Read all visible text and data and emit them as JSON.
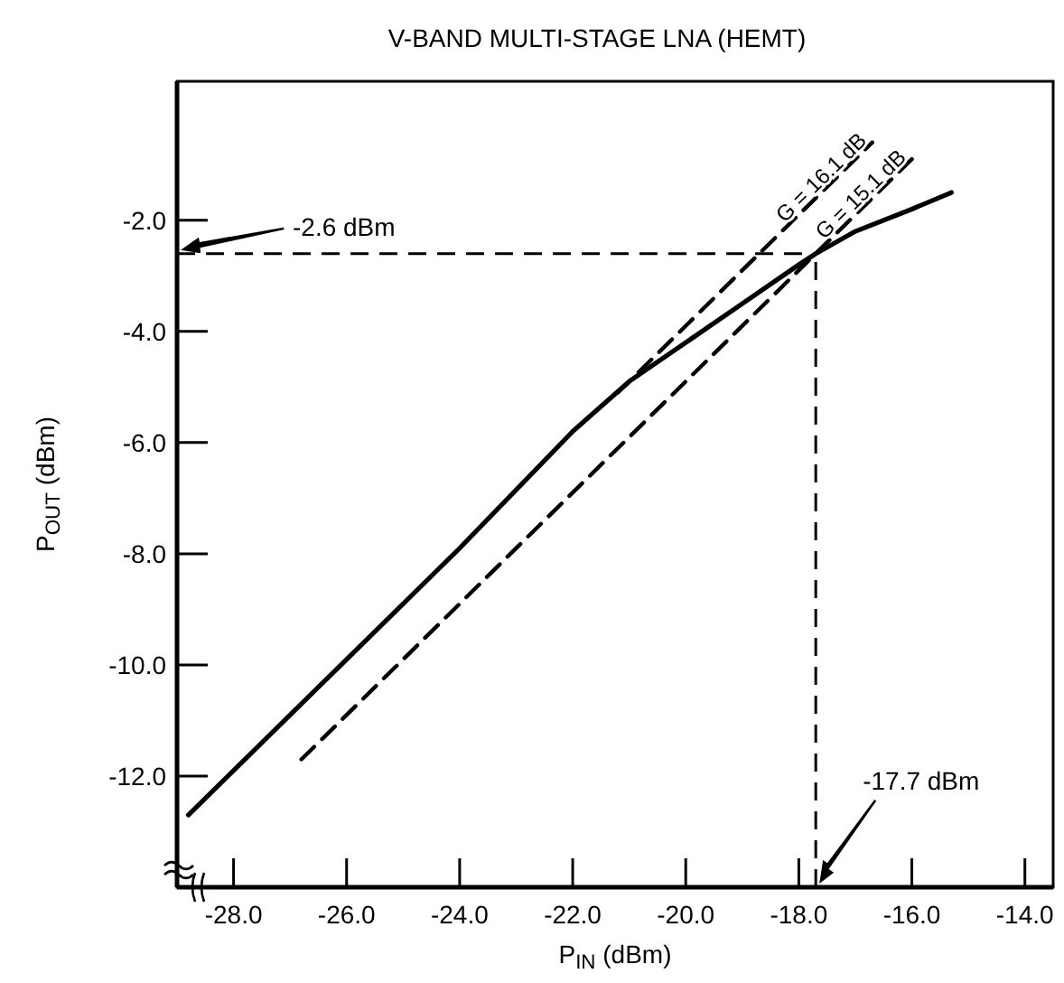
{
  "chart_data": {
    "type": "line",
    "title": "V-BAND MULTI-STAGE LNA (HEMT)",
    "xlabel": "P$_{IN}$ (dBm)",
    "ylabel": "P$_{OUT}$ (dBm)",
    "xlim": [
      -29,
      -13.5
    ],
    "ylim": [
      -14,
      0.5
    ],
    "xticks": [
      {
        "value": -28,
        "label": "-28.0"
      },
      {
        "value": -26,
        "label": "-26.0"
      },
      {
        "value": -24,
        "label": "-24.0"
      },
      {
        "value": -22,
        "label": "-22.0"
      },
      {
        "value": -20,
        "label": "-20.0"
      },
      {
        "value": -18,
        "label": "-18.0"
      },
      {
        "value": -16,
        "label": "-16.0"
      },
      {
        "value": -14,
        "label": "-14.0"
      }
    ],
    "yticks": [
      {
        "value": -2,
        "label": "-2.0"
      },
      {
        "value": -4,
        "label": "-4.0"
      },
      {
        "value": -6,
        "label": "-6.0"
      },
      {
        "value": -8,
        "label": "-8.0"
      },
      {
        "value": -10,
        "label": "-10.0"
      },
      {
        "value": -12,
        "label": "-12.0"
      }
    ],
    "grid": false,
    "marker": "none",
    "line_style": "solid",
    "series": [
      {
        "color": "#000000",
        "x": [
          -28.8,
          -26,
          -24,
          -22,
          -21,
          -20,
          -19,
          -18,
          -17.7,
          -17,
          -16,
          -15.3
        ],
        "values": [
          -12.7,
          -9.9,
          -7.9,
          -5.8,
          -4.9,
          -4.2,
          -3.5,
          -2.8,
          -2.6,
          -2.2,
          -1.8,
          -1.5
        ]
      },
      {
        "name": "G = 16.1 dB",
        "color": "#000000",
        "line_style": "dashed",
        "x": [
          -21.2,
          -16.7
        ],
        "values": [
          -5.1,
          -0.6
        ]
      },
      {
        "name": "G = 15.1 dB",
        "color": "#000000",
        "line_style": "dashed",
        "x": [
          -26.8,
          -16
        ],
        "values": [
          -11.7,
          -0.9
        ]
      }
    ],
    "ref_lines": [
      {
        "axis": "y",
        "value": -2.6,
        "label": "-2.6 dBm",
        "line_style": "dashed"
      },
      {
        "axis": "x",
        "value": -17.7,
        "label": "-17.7 dBm",
        "line_style": "dashed"
      }
    ]
  }
}
